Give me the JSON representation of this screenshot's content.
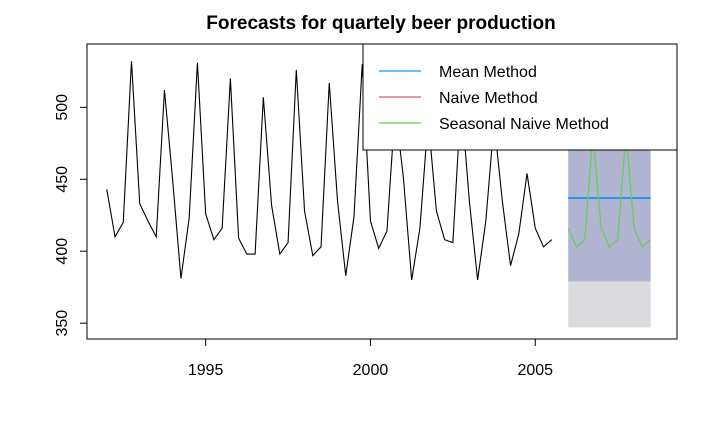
{
  "chart_data": {
    "type": "line",
    "title": "Forecasts for quartely beer production",
    "xlabel": "",
    "ylabel": "",
    "xlim": [
      1991.4,
      2009.3
    ],
    "ylim": [
      339,
      544
    ],
    "x_ticks": [
      1995,
      2000,
      2005
    ],
    "y_ticks": [
      350,
      400,
      450,
      500
    ],
    "legend_position": "top-right",
    "legend": [
      {
        "label": "Mean Method",
        "color": "#2297E6"
      },
      {
        "label": "Naive Method",
        "color": "#DF536B"
      },
      {
        "label": "Seasonal Naive Method",
        "color": "#61D04F"
      }
    ],
    "history": {
      "color": "#000000",
      "start": 1992.0,
      "frequency": 4,
      "values": [
        443,
        410,
        420,
        532,
        433,
        421,
        410,
        512,
        449,
        381,
        423,
        531,
        426,
        408,
        416,
        520,
        409,
        398,
        398,
        507,
        432,
        398,
        406,
        526,
        428,
        397,
        403,
        517,
        435,
        383,
        424,
        530,
        421,
        402,
        414,
        500,
        451,
        380,
        416,
        492,
        428,
        408,
        406,
        506,
        435,
        380,
        421,
        490,
        435,
        390,
        412,
        454,
        416,
        403,
        408
      ]
    },
    "forecast": {
      "start": 2006.0,
      "end": 2008.5,
      "interval_80": {
        "lower": 379,
        "upper": 500,
        "color": "#B0B4D0"
      },
      "interval_95": {
        "lower": 347,
        "upper": 500,
        "color": "#DBDBDF"
      },
      "series": [
        {
          "name": "Mean Method",
          "color": "#2297E6",
          "start": 2006.0,
          "frequency": 4,
          "values": [
            437,
            437,
            437,
            437,
            437,
            437,
            437,
            437,
            437,
            437,
            437
          ]
        },
        {
          "name": "Seasonal Naive Method",
          "color": "#61D04F",
          "start": 2006.0,
          "frequency": 4,
          "values": [
            416,
            403,
            408,
            482,
            416,
            403,
            408,
            482,
            416,
            403,
            408
          ]
        }
      ]
    }
  }
}
